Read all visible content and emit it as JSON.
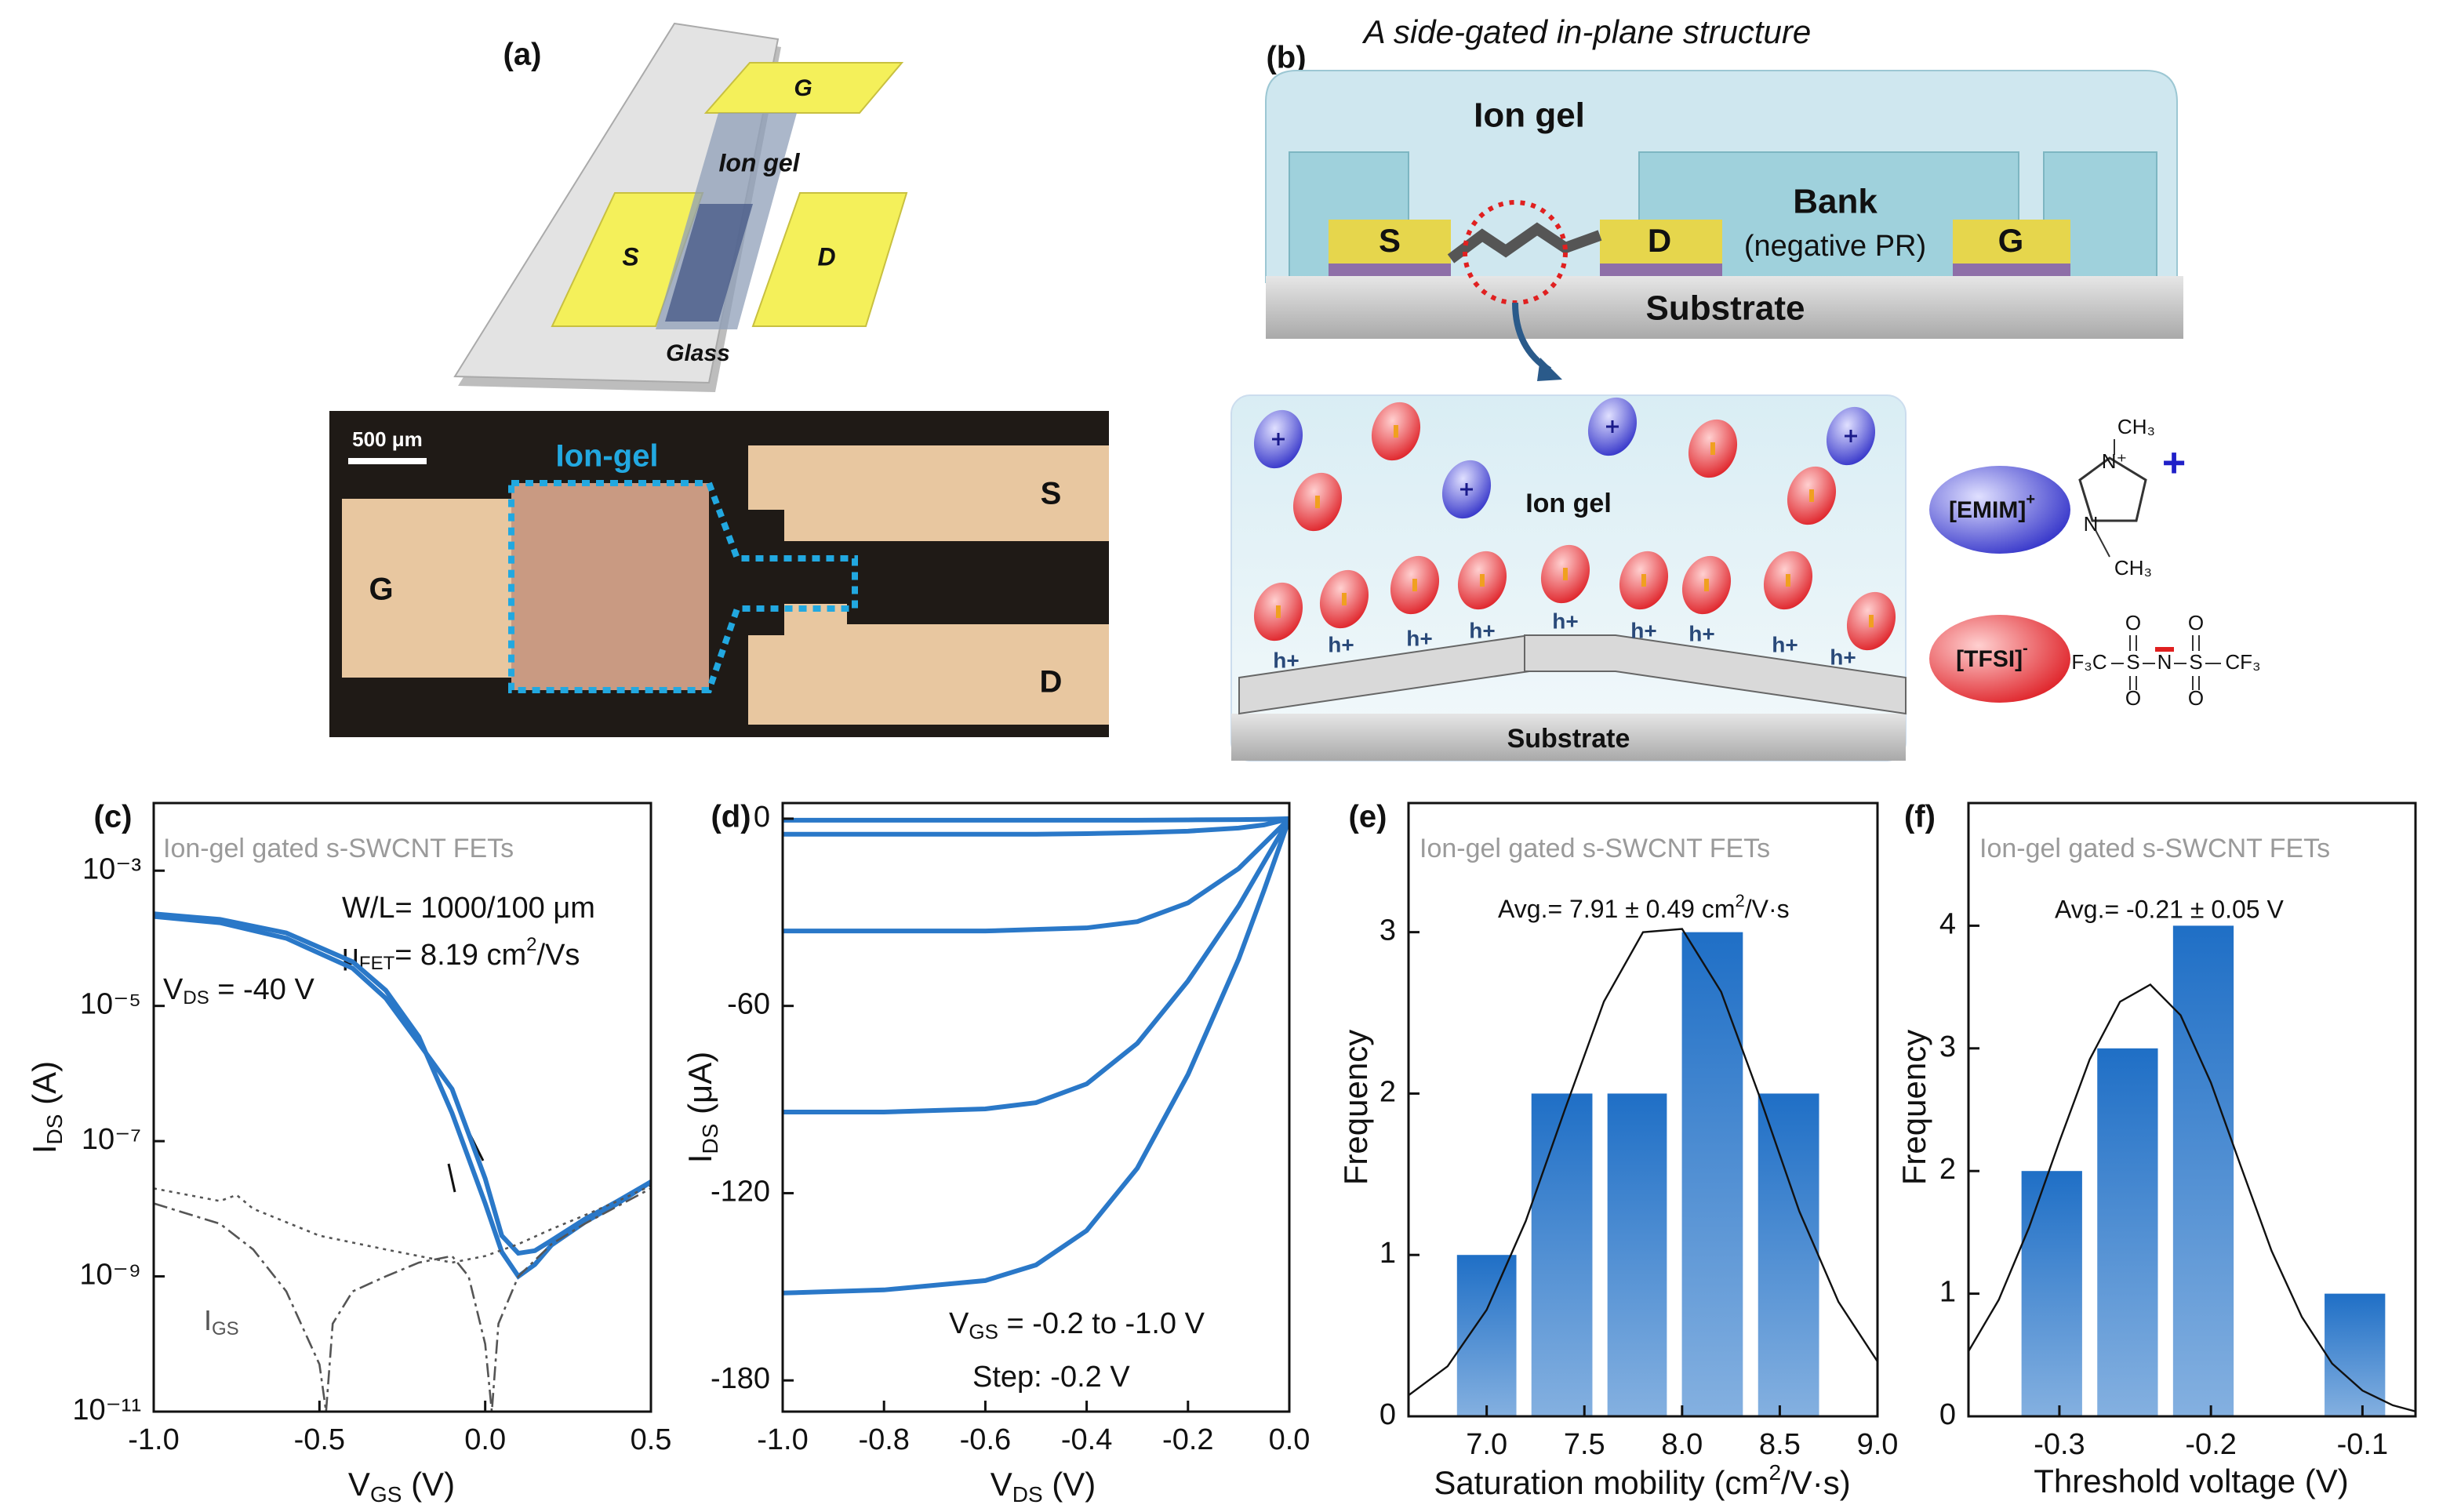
{
  "panel_a": {
    "label": "(a)",
    "schematic": {
      "gate": "G",
      "ion_gel": "Ion gel",
      "source": "S",
      "drain": "D",
      "substrate": "Glass"
    },
    "micrograph": {
      "scale_bar": "500 μm",
      "ion_gel": "Ion-gel",
      "gate": "G",
      "source": "S",
      "drain": "D"
    }
  },
  "panel_b": {
    "label": "(b)",
    "title": "A side-gated in-plane structure",
    "ion_gel": "Ion gel",
    "bank": "Bank",
    "bank_note": "(negative PR)",
    "source": "S",
    "drain": "D",
    "gate": "G",
    "substrate": "Substrate",
    "inset": {
      "ion_gel": "Ion gel",
      "hole": "h+",
      "substrate": "Substrate",
      "cation": [
        "[EMIM]",
        "+"
      ],
      "anion": [
        "[TFSI]",
        "-"
      ],
      "cation_structure": {
        "methyl": "CH₃",
        "charged_nitrogen": "N⁺",
        "nitrogen": "N",
        "charge": "+"
      },
      "anion_structure": {
        "left": "F₃C",
        "sulfur": "S",
        "nitrogen": "N",
        "right": "CF₃",
        "oxygen": "O"
      }
    }
  },
  "chart_data": [
    {
      "label": "(c)",
      "type": "line",
      "yscale": "log",
      "xlim": [
        -1,
        0.5
      ],
      "xticks": [
        {
          "value": -1,
          "label": "-1.0"
        },
        -0.5,
        {
          "value": 0,
          "label": "0.0"
        },
        0.5
      ],
      "ylim": [
        1e-11,
        0.01
      ],
      "yticks": [
        {
          "value": 0.001,
          "label": "10⁻³"
        },
        {
          "value": 1e-05,
          "label": "10⁻⁵"
        },
        {
          "value": 1e-07,
          "label": "10⁻⁷"
        },
        {
          "value": 1e-09,
          "label": "10⁻⁹"
        },
        {
          "value": 1e-11,
          "label": "10⁻¹¹"
        }
      ],
      "xlabel": [
        "V",
        "GS",
        " (V)"
      ],
      "ylabel": [
        "I",
        "DS",
        " (A)"
      ],
      "annotations": {
        "subtitle": "Ion-gel gated s-SWCNT FETs",
        "geometry": "W/L= 1000/100 μm",
        "mobility": [
          "μ",
          "FET",
          "= 8.19 cm",
          "2",
          "/Vs"
        ],
        "bias": [
          "V",
          "DS",
          " = -40 V"
        ],
        "gate_current": [
          "I",
          "GS"
        ]
      },
      "series": [
        {
          "color": "#2a78c8",
          "dash": "solid",
          "x": [
            -1,
            -0.8,
            -0.6,
            -0.4,
            -0.3,
            -0.2,
            -0.1,
            0,
            0.05,
            0.1,
            0.15,
            0.2,
            0.3,
            0.4,
            0.5
          ],
          "values": [
            0.00023,
            0.00019,
            0.00012,
            4.5e-05,
            1.7e-05,
            3.5e-06,
            2.6e-07,
            1.2e-08,
            2.3e-09,
            1e-09,
            1.5e-09,
            2.9e-09,
            6.3e-09,
            1.2e-08,
            2.5e-08
          ]
        },
        {
          "color": "#2a78c8",
          "dash": "solid",
          "x": [
            -1,
            -0.8,
            -0.6,
            -0.4,
            -0.3,
            -0.2,
            -0.1,
            0,
            0.05,
            0.1,
            0.15,
            0.2,
            0.3,
            0.4,
            0.5
          ],
          "values": [
            0.00021,
            0.00017,
            0.0001,
            3.6e-05,
            1.3e-05,
            2.8e-06,
            5.9e-07,
            2.8e-08,
            4e-09,
            2.2e-09,
            2.4e-09,
            3.4e-09,
            7e-09,
            1.3e-08,
            2.5e-08
          ]
        },
        {
          "color": "#555555",
          "dash": "dotted",
          "x": [
            -1,
            -0.8,
            -0.75,
            -0.7,
            -0.5,
            -0.3,
            -0.1,
            0,
            0.1,
            0.2,
            0.3,
            0.4,
            0.5
          ],
          "values": [
            2e-08,
            1.3e-08,
            1.6e-08,
            1e-08,
            4e-09,
            2.5e-09,
            1.6e-09,
            2e-09,
            3e-09,
            5e-09,
            8e-09,
            1.3e-08,
            2.2e-08
          ]
        },
        {
          "color": "#555555",
          "dash": "dashdot",
          "x": [
            -1,
            -0.8,
            -0.7,
            -0.6,
            -0.5,
            -0.48,
            -0.46,
            -0.4,
            -0.3,
            -0.2,
            -0.1,
            -0.05,
            0,
            0.02,
            0.04,
            0.1,
            0.2,
            0.3,
            0.5
          ],
          "values": [
            1.2e-08,
            6e-09,
            2.5e-09,
            6e-10,
            5e-11,
            1e-11,
            2e-10,
            6e-10,
            1e-09,
            1.6e-09,
            2e-09,
            1e-09,
            1e-10,
            1e-11,
            2e-10,
            1e-09,
            3e-09,
            6e-09,
            2e-08
          ]
        }
      ]
    },
    {
      "label": "(d)",
      "type": "line",
      "xlim": [
        -1,
        0
      ],
      "xticks": [
        {
          "value": -1,
          "label": "-1.0"
        },
        -0.8,
        -0.6,
        -0.4,
        -0.2,
        {
          "value": 0,
          "label": "0.0"
        }
      ],
      "ylim": [
        -190,
        5
      ],
      "yticks": [
        0,
        -60,
        -120,
        -180
      ],
      "xlabel": [
        "V",
        "DS",
        " (V)"
      ],
      "ylabel": [
        "I",
        "DS",
        " (μA)"
      ],
      "annotations": {
        "gate_range": [
          "V",
          "GS",
          " = -0.2 to -1.0 V"
        ],
        "step": "Step: -0.2 V"
      },
      "x": [
        -1,
        -0.8,
        -0.6,
        -0.5,
        -0.4,
        -0.3,
        -0.2,
        -0.1,
        -0.05,
        0
      ],
      "series": [
        {
          "color": "#2a78c8",
          "dash": "solid",
          "values": [
            -0.5,
            -0.5,
            -0.5,
            -0.5,
            -0.5,
            -0.5,
            -0.4,
            -0.3,
            -0.2,
            0
          ]
        },
        {
          "color": "#2a78c8",
          "dash": "solid",
          "values": [
            -5,
            -5,
            -5,
            -5,
            -4.8,
            -4.5,
            -4,
            -3,
            -2,
            0
          ]
        },
        {
          "color": "#2a78c8",
          "dash": "solid",
          "values": [
            -36,
            -36,
            -36,
            -35.5,
            -35,
            -33,
            -27,
            -16,
            -8,
            0
          ]
        },
        {
          "color": "#2a78c8",
          "dash": "solid",
          "values": [
            -94,
            -94,
            -93,
            -91,
            -85,
            -72,
            -52,
            -28,
            -14,
            0
          ]
        },
        {
          "color": "#2a78c8",
          "dash": "solid",
          "values": [
            -152,
            -151,
            -148,
            -143,
            -132,
            -112,
            -82,
            -45,
            -23,
            0
          ]
        }
      ]
    },
    {
      "label": "(e)",
      "type": "histogram",
      "color": "#1f6fc6",
      "bins": [
        6.81,
        7.19,
        7.58,
        7.96,
        8.35,
        8.74
      ],
      "counts": [
        1,
        2,
        2,
        3,
        2
      ],
      "fit": {
        "color": "#111111",
        "x": [
          6.6,
          6.8,
          7.0,
          7.2,
          7.4,
          7.6,
          7.8,
          8.0,
          8.2,
          8.4,
          8.6,
          8.8,
          9.0
        ],
        "values": [
          0.13,
          0.31,
          0.66,
          1.21,
          1.9,
          2.57,
          3.0,
          3.02,
          2.63,
          1.97,
          1.27,
          0.71,
          0.34
        ]
      },
      "xlim": [
        6.6,
        9.0
      ],
      "xticks": [
        {
          "value": 7,
          "label": "7.0"
        },
        7.5,
        {
          "value": 8,
          "label": "8.0"
        },
        8.5,
        {
          "value": 9,
          "label": "9.0"
        }
      ],
      "ylim": [
        0,
        3.8
      ],
      "yticks": [
        0,
        1,
        2,
        3
      ],
      "xlabel": [
        "Saturation mobility (cm",
        "2",
        "/V·s)"
      ],
      "ylabel": "Frequency",
      "annotations": {
        "subtitle": "Ion-gel gated s-SWCNT FETs",
        "average": [
          "Avg.= 7.91 ± 0.49 cm",
          "2",
          "/V·s"
        ]
      }
    },
    {
      "label": "(f)",
      "type": "histogram",
      "color": "#1f6fc6",
      "bins": [
        -0.33,
        -0.28,
        -0.23,
        -0.18,
        -0.13,
        -0.08
      ],
      "counts": [
        2,
        3,
        4,
        0,
        1
      ],
      "fit": {
        "color": "#111111",
        "x": [
          -0.36,
          -0.34,
          -0.32,
          -0.3,
          -0.28,
          -0.26,
          -0.24,
          -0.22,
          -0.2,
          -0.18,
          -0.16,
          -0.14,
          -0.12,
          -0.1,
          -0.08,
          -0.065
        ],
        "values": [
          0.53,
          0.95,
          1.54,
          2.24,
          2.91,
          3.38,
          3.52,
          3.27,
          2.72,
          2.03,
          1.35,
          0.81,
          0.43,
          0.21,
          0.09,
          0.04
        ]
      },
      "xlim": [
        -0.36,
        -0.065
      ],
      "xticks": [
        -0.3,
        -0.2,
        -0.1
      ],
      "ylim": [
        0,
        5
      ],
      "yticks": [
        0,
        1,
        2,
        3,
        4
      ],
      "xlabel": "Threshold voltage (V)",
      "ylabel": "Frequency",
      "annotations": {
        "subtitle": "Ion-gel gated s-SWCNT FETs",
        "average": "Avg.= -0.21 ± 0.05 V"
      }
    }
  ]
}
